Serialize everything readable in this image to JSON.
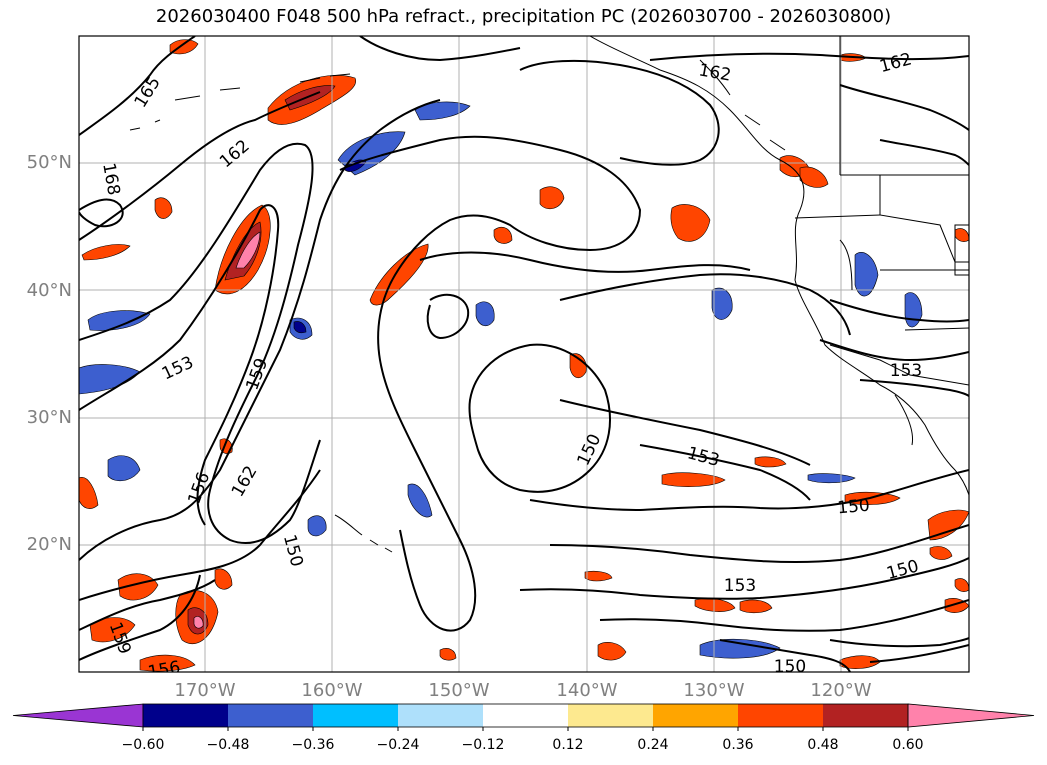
{
  "title": "2026030400 F048 500 hPa refract., precipitation PC (2026030700 - 2026030800)",
  "lat_labels": [
    "50°N",
    "40°N",
    "30°N",
    "20°N"
  ],
  "lon_labels": [
    "170°W",
    "160°W",
    "150°W",
    "140°W",
    "130°W",
    "120°W"
  ],
  "contour_labels": [
    "165",
    "168",
    "162",
    "162",
    "162",
    "153",
    "159",
    "156",
    "162",
    "150",
    "150",
    "153",
    "153",
    "150",
    "150",
    "153",
    "159",
    "156",
    "150"
  ],
  "colorbar": {
    "colors": [
      "#9a35d3",
      "#00008b",
      "#3d5fcf",
      "#00bfff",
      "#aee0fb",
      "#ffffff",
      "#fde98f",
      "#ffa500",
      "#ff4500",
      "#b22222",
      "#ff82ab"
    ],
    "ticks": [
      "−0.60",
      "−0.48",
      "−0.36",
      "−0.24",
      "−0.12",
      "0.12",
      "0.24",
      "0.36",
      "0.48",
      "0.60"
    ]
  },
  "colors": {
    "coast": "#000000",
    "grid": "#b0b0b0",
    "contour": "#000000"
  }
}
